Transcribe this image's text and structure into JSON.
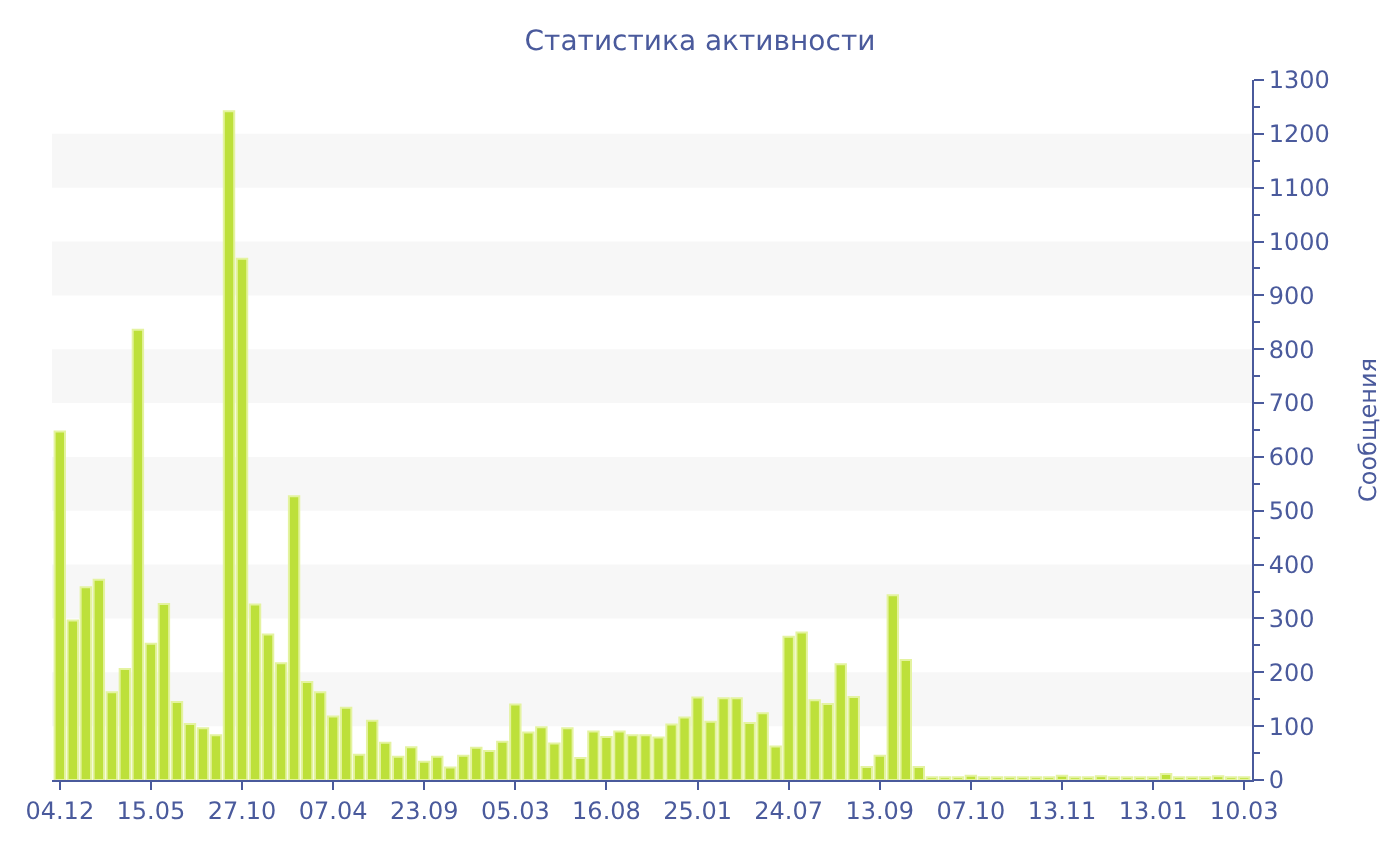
{
  "chart_data": {
    "type": "bar",
    "title": "Статистика активности",
    "ylabel": "Сообщения",
    "categories": [
      "04.12",
      null,
      null,
      null,
      null,
      null,
      null,
      "15.05",
      null,
      null,
      null,
      null,
      null,
      null,
      "27.10",
      null,
      null,
      null,
      null,
      null,
      null,
      "07.04",
      null,
      null,
      null,
      null,
      null,
      null,
      "23.09",
      null,
      null,
      null,
      null,
      null,
      null,
      "05.03",
      null,
      null,
      null,
      null,
      null,
      null,
      "16.08",
      null,
      null,
      null,
      null,
      null,
      null,
      "25.01",
      null,
      null,
      null,
      null,
      null,
      null,
      "24.07",
      null,
      null,
      null,
      null,
      null,
      null,
      "13.09",
      null,
      null,
      null,
      null,
      null,
      null,
      "07.10",
      null,
      null,
      null,
      null,
      null,
      null,
      "13.11",
      null,
      null,
      null,
      null,
      null,
      null,
      "13.01",
      null,
      null,
      null,
      null,
      null,
      null,
      "10.03"
    ],
    "values": [
      647,
      296,
      358,
      372,
      163,
      206,
      836,
      253,
      327,
      145,
      104,
      96,
      83,
      1242,
      968,
      326,
      270,
      217,
      527,
      182,
      163,
      118,
      134,
      47,
      110,
      69,
      43,
      61,
      34,
      43,
      23,
      45,
      60,
      54,
      71,
      140,
      88,
      98,
      68,
      96,
      41,
      90,
      80,
      90,
      83,
      83,
      79,
      103,
      116,
      153,
      108,
      152,
      152,
      106,
      124,
      62,
      266,
      274,
      148,
      141,
      215,
      154,
      24,
      45,
      343,
      223,
      24,
      5,
      5,
      5,
      8,
      5,
      5,
      5,
      5,
      5,
      5,
      8,
      5,
      5,
      7,
      5,
      5,
      5,
      5,
      11,
      5,
      5,
      5,
      7,
      5,
      5
    ],
    "color": "#bde03a",
    "ylim": [
      0,
      1300
    ],
    "yticks": [
      0,
      100,
      200,
      300,
      400,
      500,
      600,
      700,
      800,
      900,
      1000,
      1100,
      1200,
      1300
    ],
    "bands": [
      {
        "axis": "y",
        "from": 100,
        "to": 200,
        "color": "#f7f7f7"
      },
      {
        "axis": "y",
        "from": 300,
        "to": 400,
        "color": "#f7f7f7"
      },
      {
        "axis": "y",
        "from": 500,
        "to": 600,
        "color": "#f7f7f7"
      },
      {
        "axis": "y",
        "from": 700,
        "to": 800,
        "color": "#f7f7f7"
      },
      {
        "axis": "y",
        "from": 900,
        "to": 1000,
        "color": "#f7f7f7"
      },
      {
        "axis": "y",
        "from": 1100,
        "to": 1200,
        "color": "#f7f7f7"
      }
    ],
    "legend": false
  }
}
